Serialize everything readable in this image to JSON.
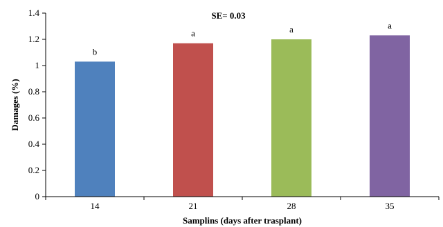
{
  "chart_data": {
    "type": "bar",
    "categories": [
      "14",
      "21",
      "28",
      "35"
    ],
    "values": [
      1.03,
      1.17,
      1.2,
      1.23
    ],
    "letters": [
      "b",
      "a",
      "a",
      "a"
    ],
    "colors": [
      "#4f81bd",
      "#c0504d",
      "#9bbb59",
      "#8064a2"
    ],
    "annotation": "SE= 0.03",
    "xlabel": "Samplins (days after trasplant)",
    "ylabel": "Damages (%)",
    "ylim": [
      0,
      1.4
    ],
    "yticks": [
      "0",
      "0.2",
      "0.4",
      "0.6",
      "0.8",
      "1",
      "1.2",
      "1.4"
    ],
    "grid": false
  }
}
